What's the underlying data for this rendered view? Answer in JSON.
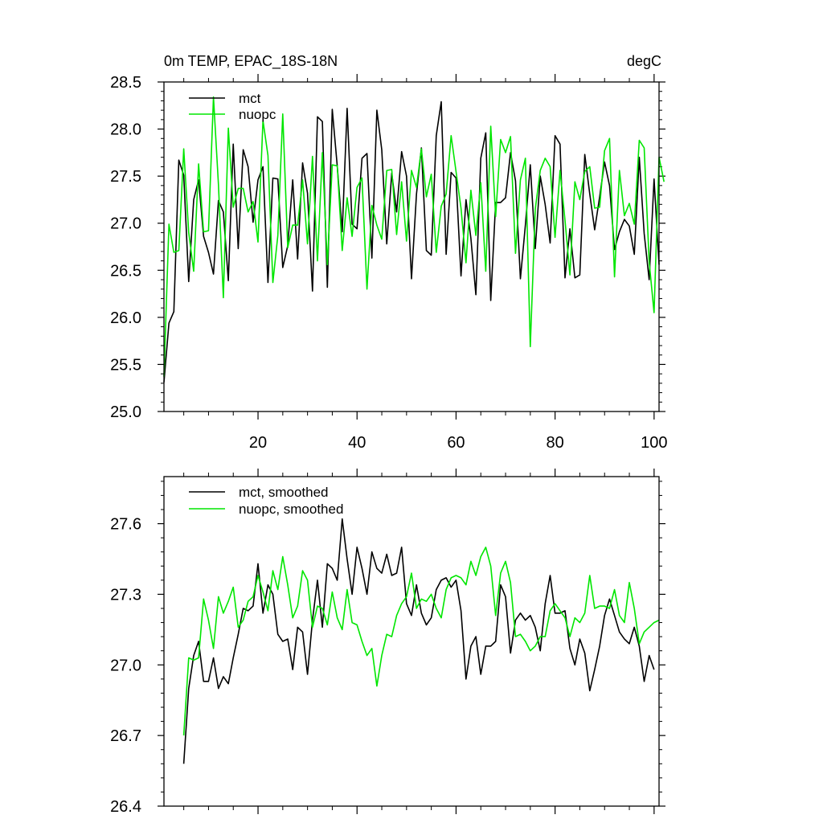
{
  "chart_data": [
    {
      "type": "line",
      "title_left": "0m TEMP, EPAC_18S-18N",
      "title_right": "degC",
      "xlabel": "",
      "ylabel": "",
      "xlim": [
        1,
        101
      ],
      "ylim": [
        25.0,
        28.5
      ],
      "xticks": [
        20,
        40,
        60,
        80,
        100
      ],
      "xtick_labels": [
        "20",
        "40",
        "60",
        "80",
        "100"
      ],
      "yticks": [
        25.0,
        25.5,
        26.0,
        26.5,
        27.0,
        27.5,
        28.0,
        28.5
      ],
      "ytick_labels": [
        "25.0",
        "25.5",
        "26.0",
        "26.5",
        "27.0",
        "27.5",
        "28.0",
        "28.5"
      ],
      "grid": false,
      "legend_position": "top-left",
      "series": [
        {
          "name": "mct",
          "color": "#000000",
          "x_start": 1,
          "values": [
            25.31,
            25.94,
            26.06,
            27.67,
            27.51,
            26.38,
            27.25,
            27.46,
            26.86,
            26.69,
            26.46,
            27.24,
            27.12,
            26.39,
            27.84,
            26.73,
            27.78,
            27.6,
            27.01,
            27.46,
            27.6,
            26.37,
            27.48,
            27.47,
            26.53,
            26.76,
            27.46,
            26.62,
            27.64,
            27.32,
            26.28,
            28.13,
            28.08,
            26.32,
            28.21,
            27.61,
            26.91,
            28.22,
            26.99,
            26.94,
            27.69,
            27.74,
            26.63,
            28.2,
            27.78,
            26.78,
            27.53,
            27.12,
            27.76,
            27.5,
            26.41,
            27.31,
            27.8,
            26.71,
            26.66,
            27.93,
            28.29,
            26.67,
            27.54,
            27.48,
            26.44,
            27.25,
            26.84,
            26.24,
            27.69,
            27.96,
            26.18,
            27.22,
            27.22,
            27.27,
            27.75,
            27.45,
            26.41,
            26.98,
            27.62,
            26.73,
            27.5,
            27.2,
            26.79,
            27.93,
            27.84,
            26.42,
            26.94,
            26.42,
            26.45,
            27.73,
            27.31,
            26.93,
            27.28,
            27.65,
            27.4,
            26.72,
            26.91,
            27.04,
            26.97,
            26.67,
            27.7,
            26.89,
            26.4,
            27.47,
            26.56
          ]
        },
        {
          "name": "nuopc",
          "color": "#00e600",
          "x_start": 1,
          "values": [
            25.37,
            26.99,
            26.69,
            26.71,
            27.79,
            26.9,
            26.49,
            27.63,
            26.91,
            26.92,
            28.34,
            27.41,
            26.21,
            28.01,
            27.17,
            27.37,
            27.37,
            27.12,
            27.23,
            26.8,
            28.09,
            27.72,
            26.37,
            26.87,
            28.16,
            26.74,
            26.98,
            26.98,
            27.46,
            26.78,
            27.71,
            26.6,
            27.75,
            26.56,
            27.62,
            27.61,
            26.71,
            27.27,
            26.86,
            27.38,
            27.48,
            26.3,
            27.19,
            26.98,
            26.83,
            27.56,
            27.57,
            26.88,
            27.44,
            26.81,
            27.56,
            27.38,
            27.79,
            27.28,
            27.52,
            26.69,
            27.18,
            27.31,
            27.93,
            27.55,
            27.16,
            26.58,
            27.35,
            26.87,
            27.43,
            26.49,
            28.03,
            27.07,
            27.89,
            27.75,
            27.92,
            26.68,
            27.46,
            27.69,
            25.69,
            27.15,
            27.56,
            27.69,
            27.6,
            26.85,
            27.56,
            27.03,
            26.45,
            27.44,
            27.25,
            27.55,
            27.6,
            27.16,
            27.17,
            27.77,
            27.9,
            26.43,
            27.56,
            27.08,
            27.21,
            26.99,
            27.88,
            27.8,
            26.59,
            26.05,
            27.7,
            27.44
          ]
        }
      ]
    },
    {
      "type": "line",
      "title_left": "",
      "title_right": "",
      "xlabel": "",
      "ylabel": "",
      "xlim": [
        1,
        101
      ],
      "ylim": [
        26.4,
        27.8
      ],
      "xticks": [
        20,
        40,
        60,
        80,
        100
      ],
      "xtick_labels": [],
      "yticks": [
        26.4,
        26.7,
        27.0,
        27.3,
        27.6
      ],
      "ytick_labels": [
        "26.4",
        "26.7",
        "27.0",
        "27.3",
        "27.6"
      ],
      "grid": false,
      "legend_position": "top-left",
      "series": [
        {
          "name": "mct, smoothed",
          "color": "#000000",
          "x_start": 5,
          "values": [
            26.58,
            26.9,
            27.04,
            27.1,
            26.93,
            26.93,
            27.03,
            26.9,
            26.95,
            26.92,
            27.03,
            27.13,
            27.24,
            27.23,
            27.25,
            27.43,
            27.22,
            27.34,
            27.3,
            27.13,
            27.1,
            27.11,
            26.98,
            27.16,
            27.14,
            26.96,
            27.19,
            27.36,
            27.16,
            27.43,
            27.41,
            27.36,
            27.62,
            27.45,
            27.3,
            27.5,
            27.41,
            27.3,
            27.48,
            27.41,
            27.39,
            27.47,
            27.38,
            27.39,
            27.5,
            27.26,
            27.21,
            27.34,
            27.22,
            27.17,
            27.2,
            27.32,
            27.36,
            27.37,
            27.33,
            27.36,
            27.23,
            26.94,
            27.08,
            27.12,
            26.96,
            27.08,
            27.08,
            27.1,
            27.34,
            27.29,
            27.05,
            27.19,
            27.22,
            27.19,
            27.21,
            27.16,
            27.06,
            27.26,
            27.38,
            27.22,
            27.22,
            27.23,
            27.07,
            27.0,
            27.11,
            27.05,
            26.89,
            26.98,
            27.08,
            27.21,
            27.28,
            27.21,
            27.14,
            27.11,
            27.09,
            27.16,
            27.08,
            26.93,
            27.04,
            26.98
          ]
        },
        {
          "name": "nuopc, smoothed",
          "color": "#00e600",
          "x_start": 5,
          "values": [
            26.7,
            27.03,
            27.02,
            27.03,
            27.28,
            27.19,
            27.07,
            27.29,
            27.22,
            27.27,
            27.33,
            27.16,
            27.19,
            27.27,
            27.29,
            27.38,
            27.31,
            27.23,
            27.4,
            27.32,
            27.46,
            27.34,
            27.2,
            27.25,
            27.4,
            27.36,
            27.16,
            27.25,
            27.24,
            27.17,
            27.31,
            27.2,
            27.15,
            27.32,
            27.18,
            27.17,
            27.1,
            27.04,
            27.07,
            26.91,
            27.04,
            27.13,
            27.12,
            27.21,
            27.26,
            27.29,
            27.39,
            27.24,
            27.28,
            27.27,
            27.3,
            27.24,
            27.2,
            27.32,
            27.37,
            27.38,
            27.37,
            27.34,
            27.44,
            27.38,
            27.46,
            27.5,
            27.42,
            27.21,
            27.39,
            27.44,
            27.35,
            27.12,
            27.13,
            27.1,
            27.06,
            27.08,
            27.12,
            27.12,
            27.23,
            27.26,
            27.23,
            27.2,
            27.12,
            27.2,
            27.18,
            27.22,
            27.38,
            27.24,
            27.25,
            27.25,
            27.24,
            27.32,
            27.21,
            27.18,
            27.35,
            27.24,
            27.09,
            27.14,
            27.16,
            27.18,
            27.19
          ]
        }
      ]
    }
  ]
}
